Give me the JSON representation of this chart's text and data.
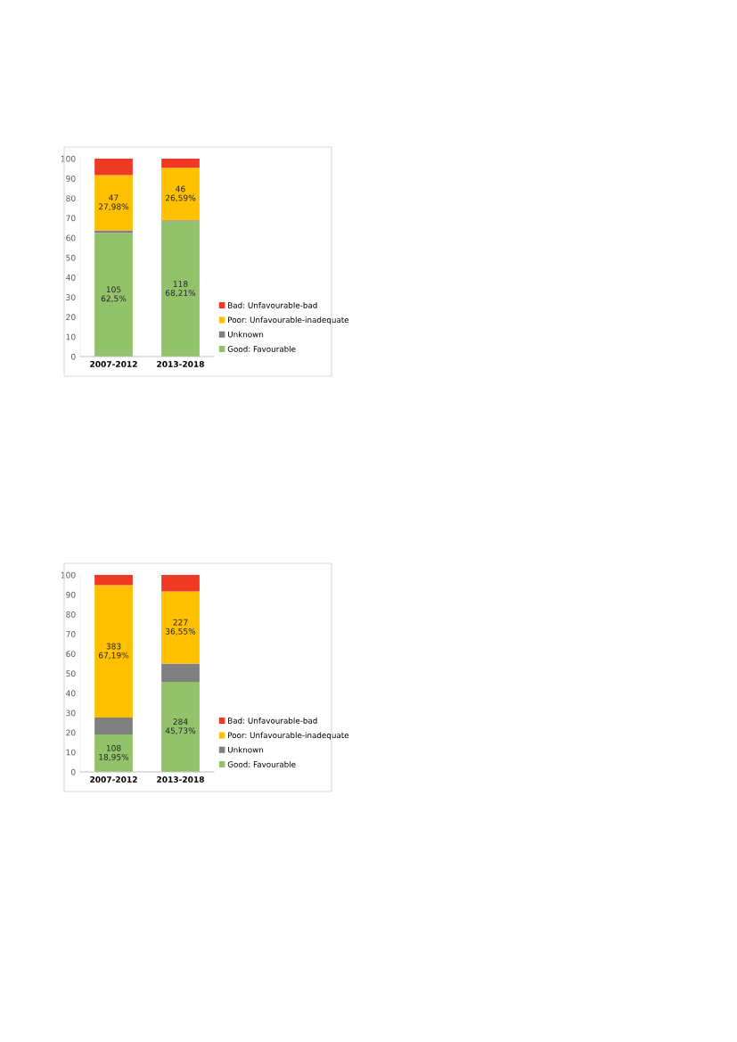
{
  "chart_data": [
    {
      "type": "bar",
      "stacked": true,
      "categories": [
        "2007-2012",
        "2013-2018"
      ],
      "ylim": [
        0,
        100
      ],
      "yticks": [
        0,
        10,
        20,
        30,
        40,
        50,
        60,
        70,
        80,
        90,
        100
      ],
      "grid": false,
      "legend": "right",
      "series": [
        {
          "name": "Good: Favourable",
          "color": "#92c36a",
          "values": [
            62.5,
            68.21
          ],
          "value_labels": [
            "105\n62,5%",
            "118\n68,21%"
          ]
        },
        {
          "name": "Unknown",
          "color": "#808080",
          "values": [
            1.2,
            0.6
          ]
        },
        {
          "name": "Poor: Unfavourable-inadequate",
          "color": "#ffc000",
          "values": [
            27.98,
            26.59
          ],
          "value_labels": [
            "47\n27,98%",
            "46\n26,59%"
          ]
        },
        {
          "name": "Bad: Unfavourable-bad",
          "color": "#ee3a24",
          "values": [
            8.3,
            4.6
          ]
        }
      ]
    },
    {
      "type": "bar",
      "stacked": true,
      "categories": [
        "2007-2012",
        "2013-2018"
      ],
      "ylim": [
        0,
        100
      ],
      "yticks": [
        0,
        10,
        20,
        30,
        40,
        50,
        60,
        70,
        80,
        90,
        100
      ],
      "grid": false,
      "legend": "right",
      "series": [
        {
          "name": "Good: Favourable",
          "color": "#92c36a",
          "values": [
            18.95,
            45.73
          ],
          "value_labels": [
            "108\n18,95%",
            "284\n45,73%"
          ]
        },
        {
          "name": "Unknown",
          "color": "#808080",
          "values": [
            8.6,
            9.3
          ]
        },
        {
          "name": "Poor: Unfavourable-inadequate",
          "color": "#ffc000",
          "values": [
            67.19,
            36.55
          ],
          "value_labels": [
            "383\n67,19%",
            "227\n36,55%"
          ]
        },
        {
          "name": "Bad: Unfavourable-bad",
          "color": "#ee3a24",
          "values": [
            5.3,
            8.4
          ]
        }
      ]
    }
  ]
}
